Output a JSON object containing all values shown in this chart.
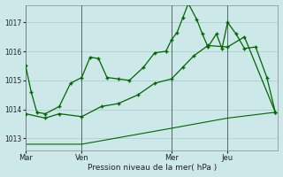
{
  "background_color": "#cce8e8",
  "grid_color": "#aacccc",
  "line_color": "#006600",
  "title": "Pression niveau de la mer( hPa )",
  "ylim": [
    1012.6,
    1017.6
  ],
  "yticks": [
    1013,
    1014,
    1015,
    1016,
    1017
  ],
  "x_tick_labels": [
    "Mar",
    "Ven",
    "Mer",
    "Jeu"
  ],
  "x_tick_positions": [
    0,
    20,
    52,
    72
  ],
  "x_vlines": [
    0,
    20,
    52,
    72
  ],
  "xlim": [
    0,
    90
  ],
  "series1_x": [
    0,
    2,
    4,
    7,
    12,
    16,
    20,
    23,
    26,
    29,
    33,
    37,
    42,
    46,
    50,
    52,
    54,
    56,
    58,
    61,
    63,
    65,
    68,
    70,
    72,
    75,
    78,
    82,
    86,
    89
  ],
  "series1_y": [
    1015.5,
    1014.6,
    1013.9,
    1013.85,
    1014.1,
    1014.9,
    1015.1,
    1015.8,
    1015.75,
    1015.1,
    1015.05,
    1015.0,
    1015.45,
    1015.95,
    1016.0,
    1016.4,
    1016.65,
    1017.15,
    1017.65,
    1017.1,
    1016.6,
    1016.15,
    1016.6,
    1016.1,
    1017.0,
    1016.6,
    1016.1,
    1016.15,
    1015.1,
    1013.9
  ],
  "series2_x": [
    0,
    7,
    12,
    20,
    27,
    33,
    40,
    46,
    52,
    56,
    60,
    65,
    72,
    78,
    89
  ],
  "series2_y": [
    1013.85,
    1013.7,
    1013.85,
    1013.75,
    1014.1,
    1014.2,
    1014.5,
    1014.9,
    1015.05,
    1015.45,
    1015.85,
    1016.2,
    1016.15,
    1016.5,
    1013.9
  ],
  "series3_x": [
    0,
    20,
    52,
    72,
    89
  ],
  "series3_y": [
    1012.8,
    1012.8,
    1013.35,
    1013.7,
    1013.9
  ]
}
